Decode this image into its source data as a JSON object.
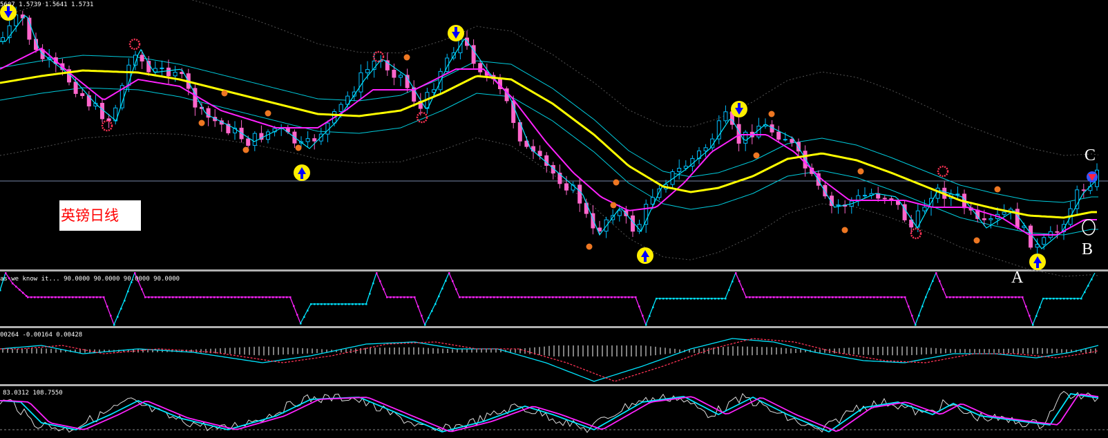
{
  "chart_data": {
    "type": "candlestick",
    "pane_headers": {
      "main": "5607 1.5739 1.5641 1.5731",
      "indicator1": "as we know it...  90.0000 90.0000 90.0000 90.0000",
      "indicator2": "00264 -0.00164 0.00428",
      "indicator3": "83.0312 108.7550"
    },
    "annotations": {
      "note": "英镑日线",
      "point_a": "A",
      "point_b": "B",
      "point_c": "C"
    },
    "colors": {
      "bull_candle": "#00bfff",
      "bear_candle": "#ff66cc",
      "ma_fast": "#00e5ff",
      "ma_mid": "#ff22ff",
      "ma_slow": "#ffff00",
      "envelope": "#00ccdd",
      "arrow_badge": "#ffee00",
      "arrow": "#0000ff",
      "dot_marker": "#ee7722",
      "star_marker": "#ff3355"
    }
  }
}
